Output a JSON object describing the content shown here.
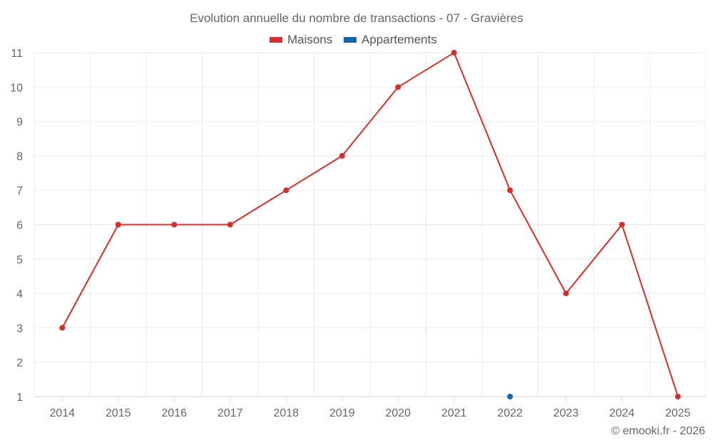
{
  "chart_data": {
    "type": "line",
    "title": "Evolution annuelle du nombre de transactions - 07 - Gravières",
    "categories": [
      "2014",
      "2015",
      "2016",
      "2017",
      "2018",
      "2019",
      "2020",
      "2021",
      "2022",
      "2023",
      "2024",
      "2025"
    ],
    "series": [
      {
        "name": "Maisons",
        "color": "#d32f2f",
        "values": [
          3,
          6,
          6,
          6,
          7,
          8,
          10,
          11,
          7,
          4,
          6,
          1
        ]
      },
      {
        "name": "Appartements",
        "color": "#1565a8",
        "values": [
          null,
          null,
          null,
          null,
          null,
          null,
          null,
          null,
          1,
          null,
          null,
          null
        ]
      }
    ],
    "y_ticks": [
      "1",
      "2",
      "3",
      "4",
      "5",
      "6",
      "7",
      "8",
      "9",
      "10",
      "11"
    ],
    "ylim": [
      1,
      11
    ],
    "grid": true,
    "legend_position": "top-center"
  },
  "credit": "© emooki.fr - 2026"
}
